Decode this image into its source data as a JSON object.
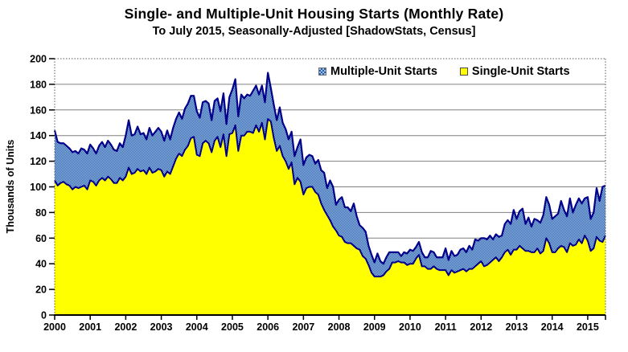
{
  "title": "Single- and Multiple-Unit Housing Starts (Monthly Rate)",
  "subtitle": "To July 2015, Seasonally-Adjusted [ShadowStats, Census]",
  "legend": [
    {
      "label": "Multiple-Unit Starts",
      "swatch": "blue-checker-swatch"
    },
    {
      "label": "Single-Unit Starts",
      "swatch": "yellow-swatch"
    }
  ],
  "colors": {
    "single_fill": "#FFFF00",
    "multiple_fill_light": "#9CC2EE",
    "multiple_fill_dark": "#2F5DA8",
    "series_outline": "#00008B",
    "gridline": "#808080",
    "axis": "#000000",
    "background": "#FFFFFF"
  },
  "chart_data": {
    "type": "area",
    "stacked": true,
    "title": "Single- and Multiple-Unit Housing Starts (Monthly Rate)",
    "subtitle": "To July 2015, Seasonally-Adjusted [ShadowStats, Census]",
    "xlabel": "",
    "ylabel": "Thousands of Units",
    "ylim": [
      0,
      200
    ],
    "y_tick_step": 20,
    "y_ticks": [
      "0",
      "20",
      "40",
      "60",
      "80",
      "100",
      "120",
      "140",
      "160",
      "180",
      "200"
    ],
    "x_ticks": [
      "2000",
      "2001",
      "2002",
      "2003",
      "2004",
      "2005",
      "2006",
      "2007",
      "2008",
      "2009",
      "2010",
      "2011",
      "2012",
      "2013",
      "2014",
      "2015"
    ],
    "frequency": "monthly",
    "x_start": "2000-01",
    "x_end": "2015-07",
    "grid": "horizontal",
    "legend_position": "top-inside",
    "series": [
      {
        "name": "Single-Unit Starts",
        "values": [
          105,
          101,
          103,
          104,
          102,
          101,
          98,
          100,
          99,
          100,
          101,
          98,
          105,
          104,
          101,
          105,
          107,
          105,
          108,
          106,
          103,
          103,
          107,
          105,
          108,
          115,
          110,
          111,
          114,
          112,
          113,
          110,
          115,
          111,
          112,
          114,
          113,
          108,
          112,
          110,
          116,
          122,
          126,
          124,
          129,
          132,
          138,
          139,
          125,
          124,
          134,
          136,
          134,
          127,
          136,
          139,
          131,
          141,
          124,
          141,
          142,
          148,
          128,
          140,
          140,
          143,
          143,
          142,
          148,
          143,
          150,
          137,
          153,
          151,
          138,
          128,
          132,
          124,
          120,
          114,
          119,
          102,
          107,
          104,
          94,
          99,
          100,
          100,
          96,
          94,
          87,
          82,
          78,
          74,
          69,
          66,
          62,
          61,
          57,
          56,
          56,
          54,
          52,
          51,
          46,
          44,
          39,
          33,
          30,
          30,
          30,
          31,
          34,
          36,
          41,
          41,
          42,
          41,
          41,
          39,
          40,
          40,
          44,
          47,
          38,
          38,
          36,
          36,
          38,
          36,
          35,
          35,
          35,
          31,
          35,
          33,
          34,
          35,
          36,
          34,
          36,
          36,
          38,
          40,
          42,
          38,
          39,
          41,
          43,
          45,
          42,
          45,
          49,
          51,
          47,
          51,
          51,
          54,
          52,
          50,
          50,
          49,
          49,
          52,
          48,
          50,
          60,
          56,
          49,
          49,
          52,
          54,
          53,
          49,
          56,
          54,
          55,
          59,
          56,
          62,
          58,
          50,
          52,
          61,
          58,
          57,
          62
        ]
      },
      {
        "name": "Multiple-Unit Starts",
        "values": [
          39,
          34,
          31,
          30,
          30,
          29,
          29,
          28,
          27,
          30,
          28,
          28,
          28,
          26,
          25,
          27,
          28,
          26,
          28,
          27,
          26,
          25,
          27,
          26,
          32,
          37,
          30,
          30,
          33,
          29,
          29,
          27,
          31,
          29,
          31,
          32,
          30,
          28,
          32,
          27,
          30,
          31,
          32,
          29,
          32,
          33,
          33,
          32,
          34,
          30,
          32,
          31,
          31,
          25,
          31,
          30,
          28,
          32,
          25,
          29,
          34,
          36,
          27,
          32,
          29,
          29,
          28,
          33,
          31,
          29,
          29,
          29,
          36,
          26,
          26,
          24,
          30,
          26,
          25,
          23,
          24,
          22,
          24,
          33,
          23,
          24,
          25,
          24,
          22,
          27,
          26,
          29,
          21,
          31,
          31,
          20,
          28,
          31,
          27,
          28,
          25,
          33,
          25,
          19,
          22,
          21,
          15,
          14,
          11,
          18,
          12,
          9,
          11,
          13,
          8,
          8,
          7,
          5,
          8,
          9,
          11,
          10,
          9,
          10,
          11,
          7,
          9,
          14,
          11,
          9,
          10,
          10,
          17,
          12,
          15,
          13,
          13,
          16,
          16,
          15,
          18,
          15,
          21,
          18,
          18,
          22,
          20,
          21,
          16,
          18,
          19,
          17,
          22,
          23,
          24,
          31,
          24,
          27,
          31,
          21,
          26,
          20,
          26,
          22,
          24,
          28,
          32,
          30,
          26,
          28,
          27,
          35,
          29,
          28,
          35,
          26,
          31,
          32,
          31,
          29,
          34,
          25,
          28,
          38,
          31,
          43,
          39
        ]
      }
    ]
  }
}
